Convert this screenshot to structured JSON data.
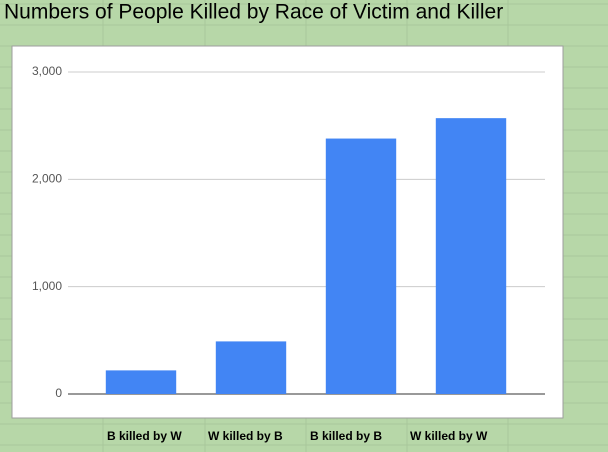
{
  "chart_data": {
    "type": "bar",
    "title": "Numbers of People Killed by Race of Victim and Killer",
    "categories": [
      "B killed by W",
      "W killed by B",
      "B killed by B",
      "W killed by W"
    ],
    "values": [
      220,
      490,
      2380,
      2570
    ],
    "color": "#4285f4",
    "ylim": [
      0,
      3000
    ],
    "yticks": [
      0,
      {
        "value": 1000,
        "label": "1,000"
      },
      {
        "value": 2000,
        "label": "2,000"
      },
      {
        "value": 3000,
        "label": "3,000"
      }
    ],
    "grid": true
  }
}
